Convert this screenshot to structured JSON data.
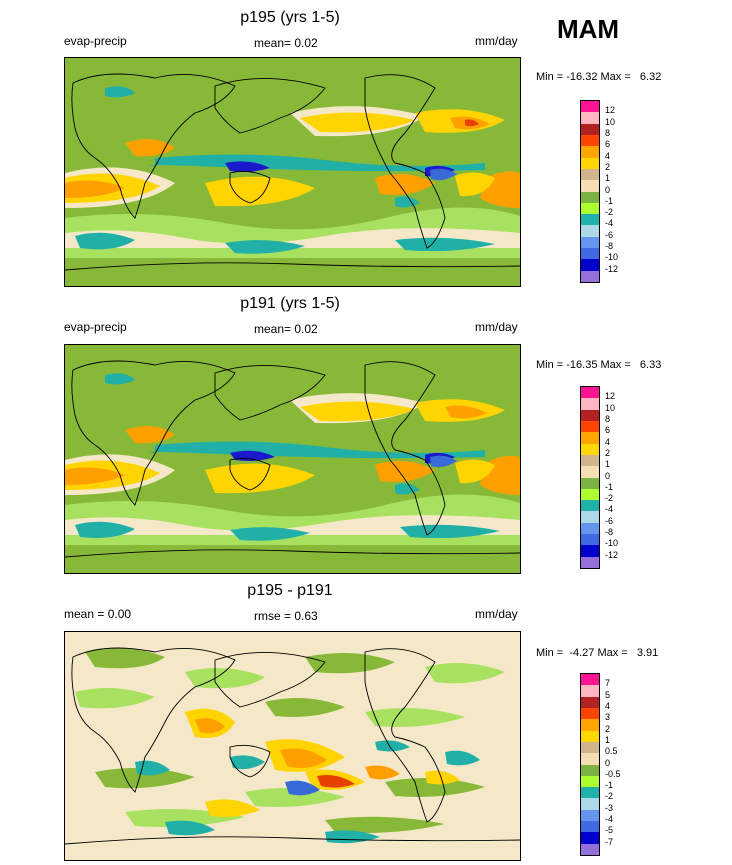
{
  "season": "MAM",
  "colors": {
    "land_outline": "#000000",
    "deep_blue": "#1a1acc",
    "cyan": "#20b0a8",
    "light_green": "#a8e060",
    "green": "#88b838",
    "beige": "#f5e8c8",
    "tan": "#d8b88c",
    "yellow": "#ffd400",
    "orange": "#ffa000",
    "red": "#e84000"
  },
  "panels": [
    {
      "title": "p195 (yrs 1-5)",
      "left_label": "evap-precip",
      "center_label": "mean=  0.02",
      "units": "mm/day",
      "minmax": "Min = -16.32 Max =   6.32",
      "legend": {
        "labels": [
          "12",
          "10",
          "8",
          "6",
          "4",
          "2",
          "1",
          "0",
          "-1",
          "-2",
          "-4",
          "-6",
          "-8",
          "-10",
          "-12"
        ],
        "colors": [
          "#ff1493",
          "#ffb6c1",
          "#b22222",
          "#ff4500",
          "#ffa500",
          "#ffd700",
          "#d2b48c",
          "#f5deb3",
          "#7cb342",
          "#adff2f",
          "#20b2aa",
          "#add8e6",
          "#6495ed",
          "#4169e1",
          "#0000cd",
          "#9370db"
        ]
      }
    },
    {
      "title": "p191 (yrs 1-5)",
      "left_label": "evap-precip",
      "center_label": "mean=  0.02",
      "units": "mm/day",
      "minmax": "Min = -16.35 Max =   6.33",
      "legend": {
        "labels": [
          "12",
          "10",
          "8",
          "6",
          "4",
          "2",
          "1",
          "0",
          "-1",
          "-2",
          "-4",
          "-6",
          "-8",
          "-10",
          "-12"
        ],
        "colors": [
          "#ff1493",
          "#ffb6c1",
          "#b22222",
          "#ff4500",
          "#ffa500",
          "#ffd700",
          "#d2b48c",
          "#f5deb3",
          "#7cb342",
          "#adff2f",
          "#20b2aa",
          "#add8e6",
          "#6495ed",
          "#4169e1",
          "#0000cd",
          "#9370db"
        ]
      }
    },
    {
      "title": "p195 - p191",
      "left_label": "mean =   0.00",
      "center_label": "rmse =   0.63",
      "units": "mm/day",
      "minmax": "Min =  -4.27 Max =   3.91",
      "legend": {
        "labels": [
          "7",
          "5",
          "4",
          "3",
          "2",
          "1",
          "0.5",
          "0",
          "-0.5",
          "-1",
          "-2",
          "-3",
          "-4",
          "-5",
          "-7"
        ],
        "colors": [
          "#ff1493",
          "#ffb6c1",
          "#b22222",
          "#ff4500",
          "#ffa500",
          "#ffd700",
          "#d2b48c",
          "#f5deb3",
          "#7cb342",
          "#adff2f",
          "#20b2aa",
          "#add8e6",
          "#6495ed",
          "#4169e1",
          "#0000cd",
          "#9370db"
        ]
      }
    }
  ]
}
